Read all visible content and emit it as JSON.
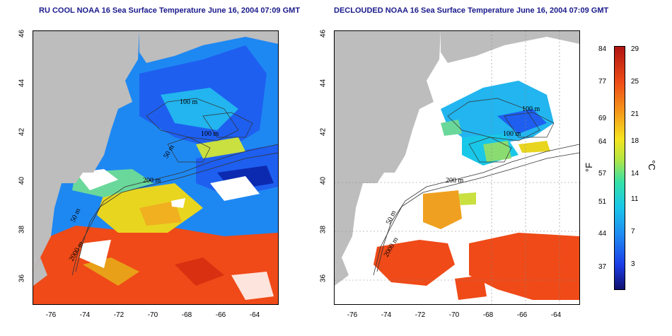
{
  "left_title": "RU COOL NOAA 16 Sea Surface Temperature June 16, 2004 07:09 GMT",
  "right_title": "DECLOUDED NOAA 16 Sea Surface Temperature June 16, 2004 07:09 GMT",
  "lat_ticks": [
    "46",
    "44",
    "42",
    "40",
    "38",
    "36"
  ],
  "lon_ticks": [
    "-76",
    "-74",
    "-72",
    "-70",
    "-68",
    "-66",
    "-64"
  ],
  "contours": {
    "c100_a": "100 m",
    "c100_b": "100 m",
    "c50_a": "50 m",
    "c200": "200 m",
    "c50_b": "50 m",
    "c200_b": "2000 m"
  },
  "colorbar": {
    "fahrenheit_label": "°F",
    "celsius_label": "°C",
    "fahrenheit_ticks": [
      "84",
      "77",
      "69",
      "64",
      "57",
      "51",
      "44",
      "37"
    ],
    "celsius_ticks": [
      "29",
      "25",
      "21",
      "18",
      "14",
      "11",
      "7",
      "3"
    ]
  },
  "colors": {
    "land": "#bdbdbd",
    "cloud": "#ffffff",
    "cold": "#1e5ff0",
    "cool": "#22b5ef",
    "mild": "#e8d520",
    "warm": "#ef4a18",
    "title": "#1a1a8c"
  }
}
